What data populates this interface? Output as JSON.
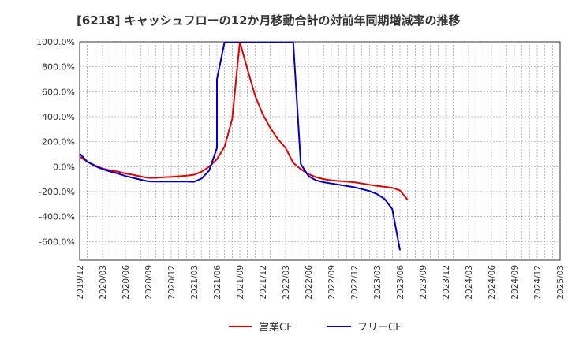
{
  "chart_data": {
    "type": "line",
    "title": "[6218]  キャッシュフローの12か月移動合計の対前年同期増減率の推移",
    "xlabel": "",
    "ylabel": "",
    "ylim": [
      -750,
      1000
    ],
    "y_ticks": [
      1000,
      800,
      600,
      400,
      200,
      0,
      -200,
      -400,
      -600
    ],
    "y_tick_labels": [
      "1000.0%",
      "800.0%",
      "600.0%",
      "400.0%",
      "200.0%",
      "0.0%",
      "-200.0%",
      "-400.0%",
      "-600.0%"
    ],
    "x_range": [
      "2019/12",
      "2025/03"
    ],
    "x_tick_labels": [
      "2019/12",
      "2020/03",
      "2020/06",
      "2020/09",
      "2020/12",
      "2021/03",
      "2021/06",
      "2021/09",
      "2021/12",
      "2022/03",
      "2022/06",
      "2022/09",
      "2022/12",
      "2023/03",
      "2023/06",
      "2023/09",
      "2023/12",
      "2024/03",
      "2024/06",
      "2024/09",
      "2024/12",
      "2025/03"
    ],
    "grid": true,
    "legend_position": "bottom",
    "series": [
      {
        "name": "営業CF",
        "color": "#e60000",
        "points": [
          [
            "2019/12",
            80
          ],
          [
            "2020/01",
            40
          ],
          [
            "2020/02",
            10
          ],
          [
            "2020/03",
            -15
          ],
          [
            "2020/04",
            -30
          ],
          [
            "2020/05",
            -40
          ],
          [
            "2020/06",
            -55
          ],
          [
            "2020/07",
            -65
          ],
          [
            "2020/08",
            -80
          ],
          [
            "2020/09",
            -90
          ],
          [
            "2020/10",
            -90
          ],
          [
            "2020/11",
            -85
          ],
          [
            "2020/12",
            -82
          ],
          [
            "2021/01",
            -78
          ],
          [
            "2021/02",
            -72
          ],
          [
            "2021/03",
            -65
          ],
          [
            "2021/04",
            -40
          ],
          [
            "2021/05",
            0
          ],
          [
            "2021/06",
            60
          ],
          [
            "2021/07",
            160
          ],
          [
            "2021/08",
            380
          ],
          [
            "2021/09",
            1000
          ],
          [
            "2021/10",
            780
          ],
          [
            "2021/11",
            570
          ],
          [
            "2021/12",
            420
          ],
          [
            "2022/01",
            310
          ],
          [
            "2022/02",
            220
          ],
          [
            "2022/03",
            150
          ],
          [
            "2022/04",
            30
          ],
          [
            "2022/05",
            -20
          ],
          [
            "2022/06",
            -60
          ],
          [
            "2022/07",
            -85
          ],
          [
            "2022/08",
            -100
          ],
          [
            "2022/09",
            -110
          ],
          [
            "2022/10",
            -115
          ],
          [
            "2022/11",
            -120
          ],
          [
            "2022/12",
            -125
          ],
          [
            "2023/01",
            -135
          ],
          [
            "2023/02",
            -145
          ],
          [
            "2023/03",
            -155
          ],
          [
            "2023/04",
            -162
          ],
          [
            "2023/05",
            -170
          ],
          [
            "2023/06",
            -190
          ],
          [
            "2023/07",
            -265
          ]
        ]
      },
      {
        "name": "フリーCF",
        "color": "#0000cc",
        "points": [
          [
            "2019/12",
            105
          ],
          [
            "2020/01",
            40
          ],
          [
            "2020/02",
            5
          ],
          [
            "2020/03",
            -20
          ],
          [
            "2020/04",
            -40
          ],
          [
            "2020/05",
            -55
          ],
          [
            "2020/06",
            -75
          ],
          [
            "2020/07",
            -90
          ],
          [
            "2020/08",
            -105
          ],
          [
            "2020/09",
            -118
          ],
          [
            "2020/10",
            -120
          ],
          [
            "2020/11",
            -120
          ],
          [
            "2020/12",
            -120
          ],
          [
            "2021/01",
            -120
          ],
          [
            "2021/02",
            -120
          ],
          [
            "2021/03",
            -122
          ],
          [
            "2021/04",
            -95
          ],
          [
            "2021/05",
            -30
          ],
          [
            "2021/06",
            150
          ],
          [
            "2021/06",
            700
          ],
          [
            "2021/07",
            1000
          ],
          [
            "2022/04",
            1000
          ],
          [
            "2022/05",
            20
          ],
          [
            "2022/06",
            -75
          ],
          [
            "2022/07",
            -110
          ],
          [
            "2022/08",
            -125
          ],
          [
            "2022/09",
            -135
          ],
          [
            "2022/10",
            -145
          ],
          [
            "2022/11",
            -155
          ],
          [
            "2022/12",
            -165
          ],
          [
            "2023/01",
            -180
          ],
          [
            "2023/02",
            -195
          ],
          [
            "2023/03",
            -220
          ],
          [
            "2023/04",
            -260
          ],
          [
            "2023/05",
            -340
          ],
          [
            "2023/06",
            -670
          ]
        ]
      }
    ]
  }
}
